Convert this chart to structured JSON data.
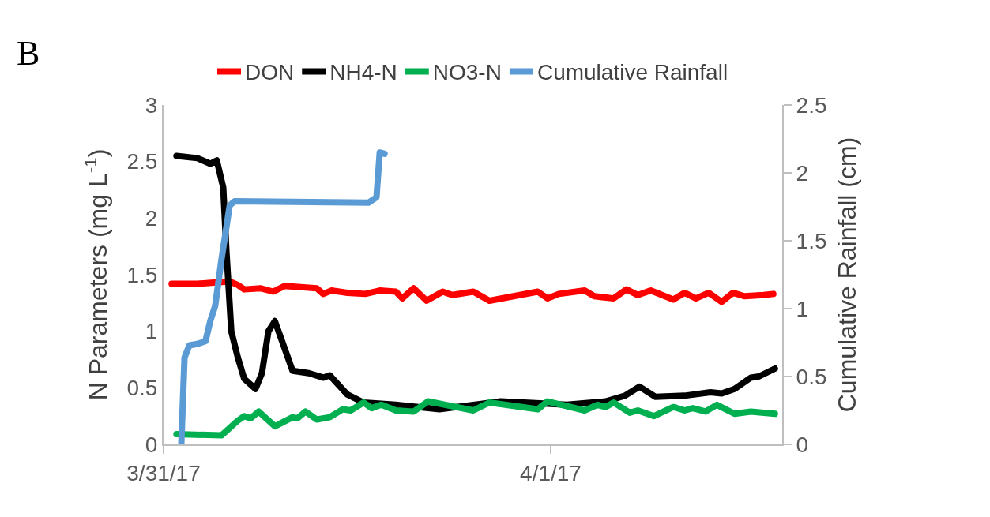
{
  "chart_data": {
    "type": "line",
    "annotations": [
      "B"
    ],
    "ylabel": "N Parameters (mg L$^{-1}$)",
    "y2label": "Cumulative Rainfall (cm)",
    "xlim": [
      "2017-03-31T00:00",
      "2017-04-01T14:21"
    ],
    "xticks": [
      {
        "value": "2017-03-31",
        "label": "3/31/17"
      },
      {
        "value": "2017-04-01",
        "label": "4/1/17"
      }
    ],
    "ylim": [
      0,
      3
    ],
    "yticks": [
      0,
      0.5,
      1,
      1.5,
      2,
      2.5,
      3
    ],
    "y2lim": [
      0,
      2.5
    ],
    "y2ticks": [
      0,
      0.5,
      1,
      1.5,
      2,
      2.5
    ],
    "legend": "top",
    "line_style": "solid",
    "series": [
      {
        "name": "DON",
        "color": "#ff0000",
        "x": [
          "2017-03-31T00:30",
          "2017-03-31T02:06",
          "2017-03-31T04:06",
          "2017-03-31T04:36",
          "2017-03-31T05:00",
          "2017-03-31T06:00",
          "2017-03-31T06:48",
          "2017-03-31T07:30",
          "2017-03-31T08:30",
          "2017-03-31T09:30",
          "2017-03-31T09:54",
          "2017-03-31T10:24",
          "2017-03-31T11:24",
          "2017-03-31T12:30",
          "2017-03-31T13:24",
          "2017-03-31T14:24",
          "2017-03-31T14:48",
          "2017-03-31T15:30",
          "2017-03-31T16:18",
          "2017-03-31T17:18",
          "2017-03-31T17:54",
          "2017-03-31T19:12",
          "2017-03-31T20:12",
          "2017-03-31T21:42",
          "2017-03-31T23:12",
          "2017-03-31T23:48",
          "2017-04-01T00:30",
          "2017-04-01T02:06",
          "2017-04-01T02:42",
          "2017-04-01T03:54",
          "2017-04-01T04:42",
          "2017-04-01T05:24",
          "2017-04-01T06:12",
          "2017-04-01T07:36",
          "2017-04-01T08:18",
          "2017-04-01T09:00",
          "2017-04-01T09:48",
          "2017-04-01T10:36",
          "2017-04-01T11:18",
          "2017-04-01T12:00",
          "2017-04-01T13:12",
          "2017-04-01T13:48"
        ],
        "values": [
          1.42,
          1.42,
          1.44,
          1.41,
          1.37,
          1.38,
          1.35,
          1.4,
          1.39,
          1.38,
          1.33,
          1.36,
          1.34,
          1.33,
          1.36,
          1.35,
          1.29,
          1.38,
          1.27,
          1.35,
          1.32,
          1.35,
          1.27,
          1.31,
          1.35,
          1.29,
          1.33,
          1.36,
          1.31,
          1.29,
          1.37,
          1.32,
          1.36,
          1.28,
          1.34,
          1.29,
          1.34,
          1.26,
          1.34,
          1.31,
          1.32,
          1.33
        ]
      },
      {
        "name": "NH4-N",
        "color": "#000000",
        "x": [
          "2017-03-31T00:48",
          "2017-03-31T02:06",
          "2017-03-31T02:54",
          "2017-03-31T03:18",
          "2017-03-31T03:42",
          "2017-03-31T03:54",
          "2017-03-31T04:12",
          "2017-03-31T04:36",
          "2017-03-31T05:00",
          "2017-03-31T05:42",
          "2017-03-31T06:06",
          "2017-03-31T06:30",
          "2017-03-31T06:54",
          "2017-03-31T07:18",
          "2017-03-31T08:00",
          "2017-03-31T09:00",
          "2017-03-31T09:54",
          "2017-03-31T10:18",
          "2017-03-31T11:24",
          "2017-03-31T12:24",
          "2017-03-31T14:24",
          "2017-03-31T17:06",
          "2017-03-31T20:54",
          "2017-04-01T01:00",
          "2017-04-01T03:24",
          "2017-04-01T04:36",
          "2017-04-01T05:30",
          "2017-04-01T06:30",
          "2017-04-01T08:18",
          "2017-04-01T09:54",
          "2017-04-01T10:36",
          "2017-04-01T11:24",
          "2017-04-01T12:24",
          "2017-04-01T12:54",
          "2017-04-01T13:54"
        ],
        "values": [
          2.55,
          2.53,
          2.48,
          2.51,
          2.27,
          1.7,
          1.0,
          0.77,
          0.58,
          0.49,
          0.63,
          1.0,
          1.09,
          0.93,
          0.65,
          0.63,
          0.59,
          0.61,
          0.44,
          0.37,
          0.35,
          0.31,
          0.38,
          0.35,
          0.38,
          0.43,
          0.51,
          0.42,
          0.43,
          0.46,
          0.45,
          0.49,
          0.59,
          0.6,
          0.67
        ]
      },
      {
        "name": "NO3-N",
        "color": "#00b050",
        "x": [
          "2017-03-31T00:48",
          "2017-03-31T03:36",
          "2017-03-31T04:36",
          "2017-03-31T05:00",
          "2017-03-31T05:24",
          "2017-03-31T05:54",
          "2017-03-31T06:54",
          "2017-03-31T08:00",
          "2017-03-31T08:18",
          "2017-03-31T08:48",
          "2017-03-31T09:30",
          "2017-03-31T10:18",
          "2017-03-31T11:06",
          "2017-03-31T11:36",
          "2017-03-31T12:24",
          "2017-03-31T12:54",
          "2017-03-31T13:30",
          "2017-03-31T14:24",
          "2017-03-31T15:30",
          "2017-03-31T16:24",
          "2017-03-31T19:12",
          "2017-03-31T20:12",
          "2017-03-31T23:12",
          "2017-03-31T23:48",
          "2017-04-01T02:06",
          "2017-04-01T02:54",
          "2017-04-01T03:24",
          "2017-04-01T03:54",
          "2017-04-01T04:54",
          "2017-04-01T05:24",
          "2017-04-01T06:24",
          "2017-04-01T07:36",
          "2017-04-01T08:18",
          "2017-04-01T08:48",
          "2017-04-01T09:36",
          "2017-04-01T10:18",
          "2017-04-01T11:24",
          "2017-04-01T12:24",
          "2017-04-01T13:54"
        ],
        "values": [
          0.09,
          0.08,
          0.21,
          0.25,
          0.23,
          0.29,
          0.16,
          0.24,
          0.23,
          0.29,
          0.22,
          0.24,
          0.31,
          0.3,
          0.37,
          0.32,
          0.35,
          0.3,
          0.29,
          0.38,
          0.3,
          0.37,
          0.31,
          0.38,
          0.3,
          0.35,
          0.33,
          0.37,
          0.28,
          0.3,
          0.25,
          0.33,
          0.3,
          0.32,
          0.29,
          0.35,
          0.27,
          0.29,
          0.27
        ]
      },
      {
        "name": "Cumulative Rainfall",
        "color": "#5b9bd5",
        "axis": "y2",
        "x": [
          "2017-03-31T01:06",
          "2017-03-31T01:18",
          "2017-03-31T01:36",
          "2017-03-31T02:06",
          "2017-03-31T02:36",
          "2017-03-31T02:54",
          "2017-03-31T03:12",
          "2017-03-31T03:36",
          "2017-03-31T04:06",
          "2017-03-31T04:24",
          "2017-03-31T12:42",
          "2017-03-31T13:12",
          "2017-03-31T13:24",
          "2017-03-31T13:42"
        ],
        "values": [
          0,
          0.64,
          0.73,
          0.74,
          0.76,
          0.91,
          1.02,
          1.37,
          1.76,
          1.79,
          1.78,
          1.82,
          2.15,
          2.14
        ]
      }
    ]
  }
}
